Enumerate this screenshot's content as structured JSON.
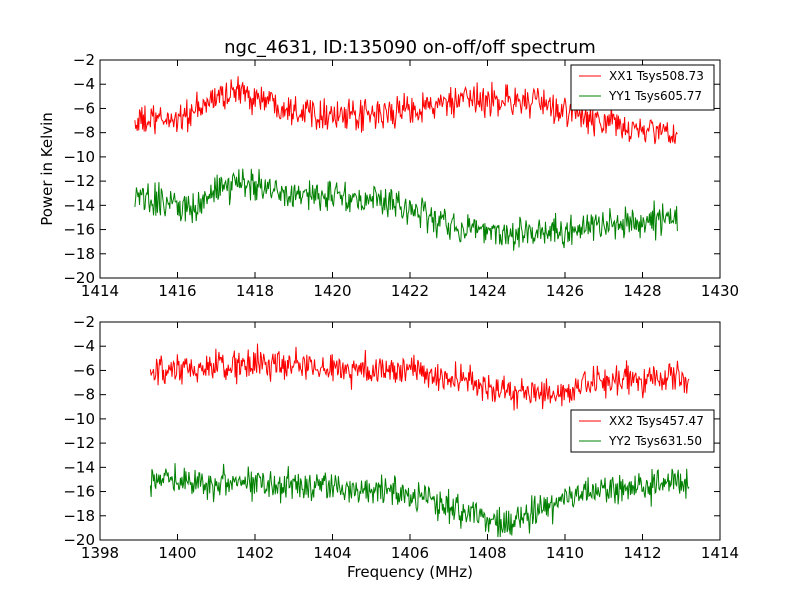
{
  "title": "ngc_4631, ID:135090 on-off/off spectrum",
  "chart_data": [
    {
      "type": "line",
      "title": "ngc_4631, ID:135090 on-off/off spectrum",
      "xlabel": "",
      "ylabel": "Power in Kelvin",
      "xlim": [
        1414,
        1430
      ],
      "ylim": [
        -20,
        -2
      ],
      "xticks": [
        1414,
        1416,
        1418,
        1420,
        1422,
        1424,
        1426,
        1428,
        1430
      ],
      "yticks": [
        -2,
        -4,
        -6,
        -8,
        -10,
        -12,
        -14,
        -16,
        -18,
        -20
      ],
      "legend_position": "top-right",
      "noise_amplitude": 1.0,
      "series": [
        {
          "name": "XX1 Tsys508.73",
          "color": "#ff0000",
          "x": [
            1414.9,
            1415.5,
            1416.0,
            1416.5,
            1417.0,
            1417.5,
            1418.0,
            1418.5,
            1419.0,
            1419.5,
            1420.0,
            1420.5,
            1421.0,
            1421.5,
            1422.0,
            1422.5,
            1423.0,
            1423.5,
            1424.0,
            1424.5,
            1425.0,
            1425.5,
            1426.0,
            1426.5,
            1427.0,
            1427.5,
            1428.0,
            1428.5,
            1428.9
          ],
          "values": [
            -7.2,
            -7.0,
            -6.8,
            -6.3,
            -5.0,
            -4.6,
            -5.0,
            -5.5,
            -6.0,
            -6.2,
            -6.5,
            -6.8,
            -6.6,
            -6.4,
            -6.0,
            -5.8,
            -5.6,
            -5.4,
            -5.3,
            -5.3,
            -5.4,
            -5.8,
            -6.2,
            -6.8,
            -7.2,
            -7.5,
            -7.8,
            -8.0,
            -8.1
          ]
        },
        {
          "name": "YY1 Tsys605.77",
          "color": "#008000",
          "x": [
            1414.9,
            1415.5,
            1416.0,
            1416.5,
            1417.0,
            1417.5,
            1418.0,
            1418.5,
            1419.0,
            1419.5,
            1420.0,
            1420.5,
            1421.0,
            1421.5,
            1422.0,
            1422.5,
            1423.0,
            1423.5,
            1424.0,
            1424.5,
            1425.0,
            1425.5,
            1426.0,
            1426.5,
            1427.0,
            1427.5,
            1428.0,
            1428.5,
            1428.9
          ],
          "values": [
            -13.5,
            -13.7,
            -13.8,
            -14.3,
            -12.8,
            -12.3,
            -12.2,
            -12.6,
            -13.0,
            -13.2,
            -13.3,
            -13.5,
            -13.6,
            -13.9,
            -14.2,
            -15.0,
            -15.6,
            -16.0,
            -16.0,
            -16.2,
            -16.3,
            -16.3,
            -16.0,
            -15.8,
            -15.7,
            -15.5,
            -15.3,
            -15.2,
            -15.2
          ]
        }
      ]
    },
    {
      "type": "line",
      "title": "",
      "xlabel": "Frequency (MHz)",
      "ylabel": "",
      "xlim": [
        1398,
        1414
      ],
      "ylim": [
        -20,
        -2
      ],
      "xticks": [
        1398,
        1400,
        1402,
        1404,
        1406,
        1408,
        1410,
        1412,
        1414
      ],
      "yticks": [
        -2,
        -4,
        -6,
        -8,
        -10,
        -12,
        -14,
        -16,
        -18,
        -20
      ],
      "legend_position": "center-right",
      "noise_amplitude": 1.0,
      "series": [
        {
          "name": "XX2 Tsys457.47",
          "color": "#ff0000",
          "x": [
            1399.3,
            1400.0,
            1400.5,
            1401.0,
            1401.5,
            1402.0,
            1402.5,
            1403.0,
            1403.5,
            1404.0,
            1404.5,
            1405.0,
            1405.5,
            1406.0,
            1406.5,
            1407.0,
            1407.5,
            1408.0,
            1408.5,
            1409.0,
            1409.5,
            1410.0,
            1410.5,
            1411.0,
            1411.5,
            1412.0,
            1412.5,
            1413.2
          ],
          "values": [
            -6.4,
            -6.1,
            -5.9,
            -5.7,
            -5.6,
            -5.5,
            -5.5,
            -5.6,
            -5.7,
            -5.8,
            -5.9,
            -5.9,
            -6.0,
            -6.0,
            -6.3,
            -6.6,
            -7.0,
            -7.3,
            -7.7,
            -8.0,
            -8.0,
            -7.8,
            -7.4,
            -7.0,
            -6.8,
            -6.6,
            -6.6,
            -6.7
          ]
        },
        {
          "name": "YY2 Tsys631.50",
          "color": "#008000",
          "x": [
            1399.3,
            1400.0,
            1400.5,
            1401.0,
            1401.5,
            1402.0,
            1402.5,
            1403.0,
            1403.5,
            1404.0,
            1404.5,
            1405.0,
            1405.5,
            1406.0,
            1406.5,
            1407.0,
            1407.5,
            1408.0,
            1408.5,
            1409.0,
            1409.5,
            1410.0,
            1410.5,
            1411.0,
            1411.5,
            1412.0,
            1412.5,
            1413.2
          ],
          "values": [
            -15.0,
            -15.0,
            -15.1,
            -15.2,
            -15.2,
            -15.2,
            -15.3,
            -15.4,
            -15.5,
            -15.6,
            -15.7,
            -15.8,
            -16.0,
            -16.2,
            -16.6,
            -17.2,
            -17.8,
            -18.2,
            -18.4,
            -18.0,
            -17.2,
            -16.6,
            -16.2,
            -16.0,
            -15.8,
            -15.6,
            -15.4,
            -15.3
          ]
        }
      ]
    }
  ]
}
